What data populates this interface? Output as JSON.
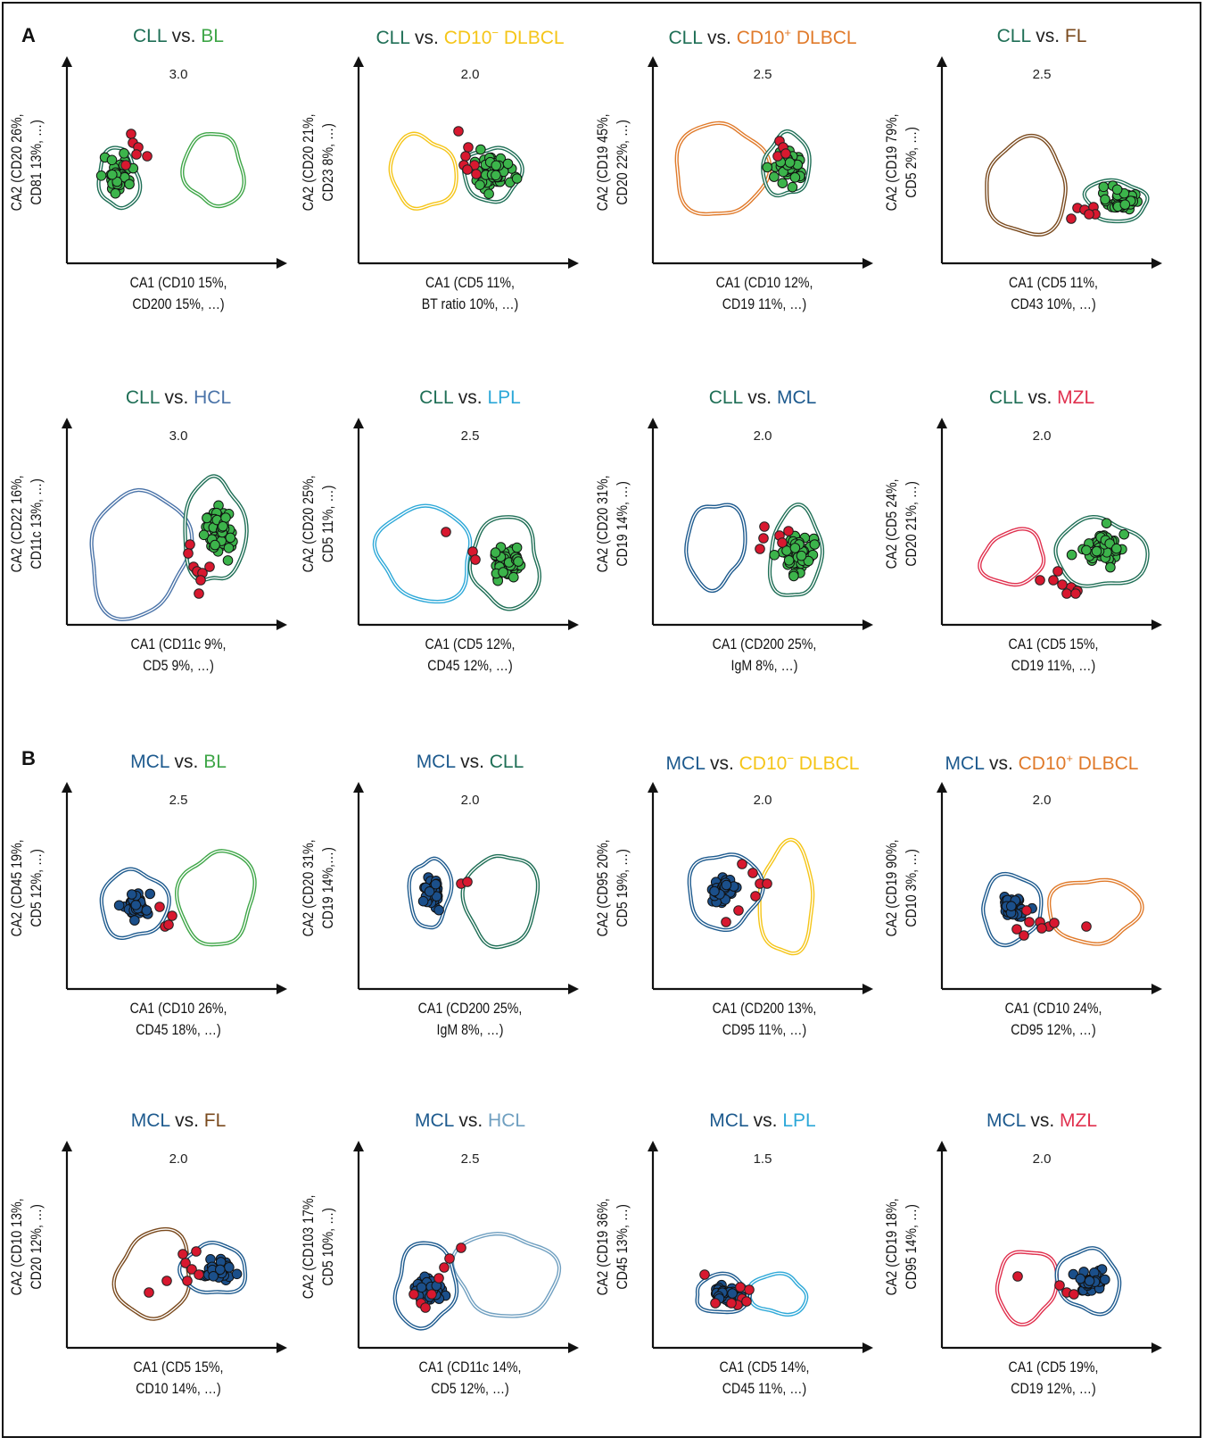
{
  "panel_labels": [
    "A",
    "B"
  ],
  "colors": {
    "CLL": "#1f6f56",
    "BL": "#3fa648",
    "CD10- DLBCL": "#f5c518",
    "CD10+ DLBCL": "#e07a2a",
    "FL": "#7a4a1e",
    "HCL": "#4a73a8",
    "LPL": "#2da8d8",
    "MCL": "#1d5a8e",
    "MZL": "#e0304e",
    "HCL_light": "#6f9fc0",
    "misclassified": "#d8182f",
    "cll_point": "#3cb44b",
    "mcl_point": "#1b4f8a",
    "axis": "#111111",
    "text": "#111111"
  },
  "chart_data": [
    {
      "type": "scatter",
      "section": "A",
      "title_main": "CLL",
      "title_vs": "vs.",
      "title_other": "BL",
      "other_sup": "",
      "other_suffix": "",
      "score": "3.0",
      "xlabel": [
        "CA1 (CD10 15%,",
        "CD200 15%, …)"
      ],
      "ylabel": [
        "CA2 (CD20 26%,",
        "CD81 13%, …)"
      ]
    },
    {
      "type": "scatter",
      "section": "A",
      "title_main": "CLL",
      "title_vs": "vs.",
      "title_other": "CD10",
      "other_sup": "−",
      "other_suffix": " DLBCL",
      "score": "2.0",
      "xlabel": [
        "CA1 (CD5 11%,",
        "BT ratio 10%, …)"
      ],
      "ylabel": [
        "CA2 (CD20 21%,",
        "CD23 8%, …)"
      ]
    },
    {
      "type": "scatter",
      "section": "A",
      "title_main": "CLL",
      "title_vs": "vs.",
      "title_other": "CD10",
      "other_sup": "+",
      "other_suffix": " DLBCL",
      "score": "2.5",
      "xlabel": [
        "CA1 (CD10 12%,",
        "CD19 11%, …)"
      ],
      "ylabel": [
        "CA2 (CD19 45%,",
        "CD20 22%, …)"
      ]
    },
    {
      "type": "scatter",
      "section": "A",
      "title_main": "CLL",
      "title_vs": "vs.",
      "title_other": "FL",
      "other_sup": "",
      "other_suffix": "",
      "score": "2.5",
      "xlabel": [
        "CA1 (CD5 11%,",
        "CD43 10%, …)"
      ],
      "ylabel": [
        "CA2 (CD19 79%,",
        "CD5 2%, …)"
      ]
    },
    {
      "type": "scatter",
      "section": "A",
      "title_main": "CLL",
      "title_vs": "vs.",
      "title_other": "HCL",
      "other_sup": "",
      "other_suffix": "",
      "score": "3.0",
      "xlabel": [
        "CA1 (CD11c 9%,",
        "CD5 9%, …)"
      ],
      "ylabel": [
        "CA2 (CD22 16%,",
        "CD11c 13%, …)"
      ]
    },
    {
      "type": "scatter",
      "section": "A",
      "title_main": "CLL",
      "title_vs": "vs.",
      "title_other": "LPL",
      "other_sup": "",
      "other_suffix": "",
      "score": "2.5",
      "xlabel": [
        "CA1 (CD5 12%,",
        "CD45 12%, …)"
      ],
      "ylabel": [
        "CA2 (CD20 25%,",
        "CD5 11%, …)"
      ]
    },
    {
      "type": "scatter",
      "section": "A",
      "title_main": "CLL",
      "title_vs": "vs.",
      "title_other": "MCL",
      "other_sup": "",
      "other_suffix": "",
      "score": "2.0",
      "xlabel": [
        "CA1 (CD200 25%,",
        "IgM 8%, …)"
      ],
      "ylabel": [
        "CA2 (CD20 31%,",
        "CD19 14%, …)"
      ]
    },
    {
      "type": "scatter",
      "section": "A",
      "title_main": "CLL",
      "title_vs": "vs.",
      "title_other": "MZL",
      "other_sup": "",
      "other_suffix": "",
      "score": "2.0",
      "xlabel": [
        "CA1 (CD5 15%,",
        "CD19 11%, …)"
      ],
      "ylabel": [
        "CA2 (CD5 24%,",
        "CD20 21%, …)"
      ]
    },
    {
      "type": "scatter",
      "section": "B",
      "title_main": "MCL",
      "title_vs": "vs.",
      "title_other": "BL",
      "other_sup": "",
      "other_suffix": "",
      "score": "2.5",
      "xlabel": [
        "CA1 (CD10 26%,",
        "CD45 18%, …)"
      ],
      "ylabel": [
        "CA2 (CD45 19%,",
        "CD5 12%, …)"
      ]
    },
    {
      "type": "scatter",
      "section": "B",
      "title_main": "MCL",
      "title_vs": "vs.",
      "title_other": "CLL",
      "other_sup": "",
      "other_suffix": "",
      "score": "2.0",
      "xlabel": [
        "CA1 (CD200 25%,",
        "IgM 8%, …)"
      ],
      "ylabel": [
        "CA2 (CD20 31%,",
        "CD19 14%,…)"
      ]
    },
    {
      "type": "scatter",
      "section": "B",
      "title_main": "MCL",
      "title_vs": "vs.",
      "title_other": "CD10",
      "other_sup": "−",
      "other_suffix": " DLBCL",
      "score": "2.0",
      "xlabel": [
        "CA1 (CD200 13%,",
        "CD95 11%, …)"
      ],
      "ylabel": [
        "CA2 (CD95 20%,",
        "CD5 19%, …)"
      ]
    },
    {
      "type": "scatter",
      "section": "B",
      "title_main": "MCL",
      "title_vs": "vs.",
      "title_other": "CD10",
      "other_sup": "+",
      "other_suffix": " DLBCL",
      "score": "2.0",
      "xlabel": [
        "CA1 (CD10 24%,",
        "CD95 12%, …)"
      ],
      "ylabel": [
        "CA2 (CD19 90%,",
        "CD10 3%, …)"
      ]
    },
    {
      "type": "scatter",
      "section": "B",
      "title_main": "MCL",
      "title_vs": "vs.",
      "title_other": "FL",
      "other_sup": "",
      "other_suffix": "",
      "score": "2.0",
      "xlabel": [
        "CA1 (CD5 15%,",
        "CD10 14%, …)"
      ],
      "ylabel": [
        "CA2 (CD10 13%,",
        "CD20 12%, …)"
      ]
    },
    {
      "type": "scatter",
      "section": "B",
      "title_main": "MCL",
      "title_vs": "vs.",
      "title_other": "HCL",
      "other_sup": "",
      "other_suffix": "",
      "score": "2.5",
      "xlabel": [
        "CA1 (CD11c 14%,",
        "CD5 12%, …)"
      ],
      "ylabel": [
        "CA2 (CD103 17%,",
        "CD5 10%, …)"
      ]
    },
    {
      "type": "scatter",
      "section": "B",
      "title_main": "MCL",
      "title_vs": "vs.",
      "title_other": "LPL",
      "other_sup": "",
      "other_suffix": "",
      "score": "1.5",
      "xlabel": [
        "CA1 (CD5 14%,",
        "CD45 11%, …)"
      ],
      "ylabel": [
        "CA2 (CD19 36%,",
        "CD45 13%, …)"
      ]
    },
    {
      "type": "scatter",
      "section": "B",
      "title_main": "MCL",
      "title_vs": "vs.",
      "title_other": "MZL",
      "other_sup": "",
      "other_suffix": "",
      "score": "2.0",
      "xlabel": [
        "CA1 (CD5 19%,",
        "CD19 12%, …)"
      ],
      "ylabel": [
        "CA2 (CD19 18%,",
        "CD95 14%, …)"
      ]
    }
  ]
}
